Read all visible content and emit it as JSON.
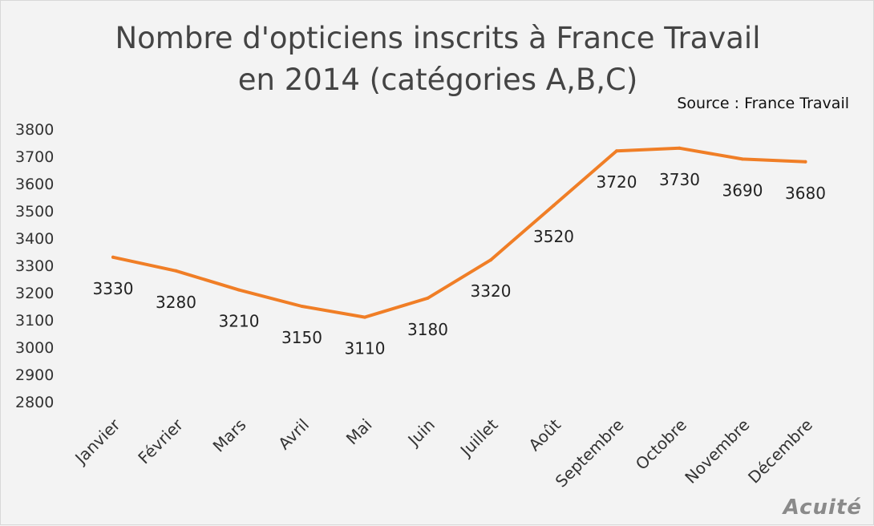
{
  "chart_data": {
    "type": "line",
    "title_line1": "Nombre d'opticiens inscrits à France Travail",
    "title_line2": "en 2014 (catégories A,B,C)",
    "source": "Source : France Travail",
    "categories": [
      "Janvier",
      "Février",
      "Mars",
      "Avril",
      "Mai",
      "Juin",
      "Juillet",
      "Août",
      "Septembre",
      "Octobre",
      "Novembre",
      "Décembre"
    ],
    "series": [
      {
        "values": [
          3330,
          3280,
          3210,
          3150,
          3110,
          3180,
          3320,
          3520,
          3720,
          3730,
          3690,
          3680
        ],
        "color": "#f07e26"
      }
    ],
    "y_ticks": [
      3800,
      3700,
      3600,
      3500,
      3400,
      3300,
      3200,
      3100,
      3000,
      2900,
      2800
    ],
    "ylim": [
      2800,
      3800
    ],
    "grid": false,
    "legend": "none",
    "data_labels": true
  },
  "logo_text": "Acuité"
}
